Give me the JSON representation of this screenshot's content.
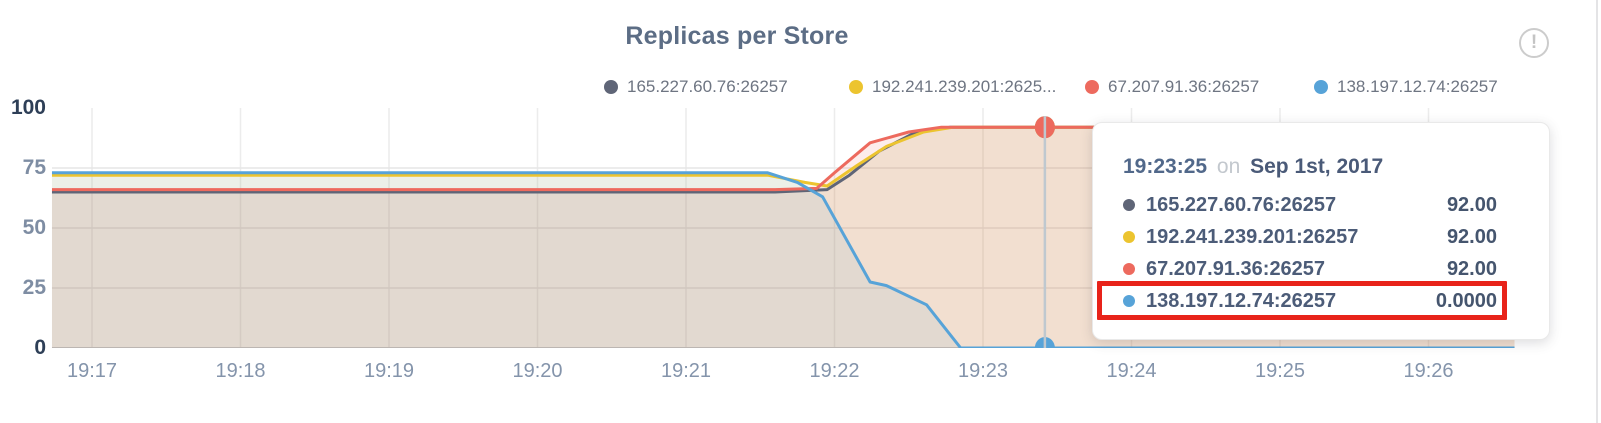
{
  "panel": {
    "title": "Replicas per Store",
    "info_glyph": "!"
  },
  "legend": {
    "items": [
      {
        "label": "165.227.60.76:26257",
        "color": "#5f6577"
      },
      {
        "label": "192.241.239.201:2625...",
        "color": "#ecc42f"
      },
      {
        "label": "67.207.91.36:26257",
        "color": "#ed6a5e"
      },
      {
        "label": "138.197.12.74:26257",
        "color": "#57a3d8"
      }
    ]
  },
  "tooltip": {
    "time": "19:23:25",
    "on_word": "on",
    "date": "Sep 1st, 2017",
    "rows": [
      {
        "name": "165.227.60.76:26257",
        "value": "92.00",
        "color": "#5f6577",
        "highlighted": false
      },
      {
        "name": "192.241.239.201:26257",
        "value": "92.00",
        "color": "#ecc42f",
        "highlighted": false
      },
      {
        "name": "67.207.91.36:26257",
        "value": "92.00",
        "color": "#ed6a5e",
        "highlighted": false
      },
      {
        "name": "138.197.12.74:26257",
        "value": "0.0000",
        "color": "#57a3d8",
        "highlighted": true
      }
    ]
  },
  "colors": {
    "annotation_red": "#e8231a",
    "title": "#5c6d85",
    "axis_strong": "#2e3f57",
    "axis_muted": "#7e8da3",
    "x_label": "#8494ab",
    "grid_vertical": "#ececec",
    "grid_horizontal": "#e6e6e6",
    "baseline": "#c6cbd1",
    "hover_line": "#bfc8cf",
    "legend_text": "#6e7582",
    "tooltip_time": "#51688a",
    "tooltip_on": "#c3c8ce",
    "tooltip_text": "#4c5c78",
    "info_icon": "#c9c9c9"
  },
  "chart_data": {
    "type": "area",
    "title": "Replicas per Store",
    "xlabel": "",
    "ylabel": "",
    "ylim": [
      0,
      100
    ],
    "grid": true,
    "legend_position": "top",
    "y_ticks": [
      {
        "v": 0,
        "label": "0",
        "strong": true
      },
      {
        "v": 25,
        "label": "25",
        "strong": false
      },
      {
        "v": 50,
        "label": "50",
        "strong": false
      },
      {
        "v": 75,
        "label": "75",
        "strong": false
      },
      {
        "v": 100,
        "label": "100",
        "strong": true
      }
    ],
    "x_ticks": [
      {
        "m": 17,
        "label": "19:17"
      },
      {
        "m": 18,
        "label": "19:18"
      },
      {
        "m": 19,
        "label": "19:19"
      },
      {
        "m": 20,
        "label": "19:20"
      },
      {
        "m": 21,
        "label": "19:21"
      },
      {
        "m": 22,
        "label": "19:22"
      },
      {
        "m": 23,
        "label": "19:23"
      },
      {
        "m": 24,
        "label": "19:24"
      },
      {
        "m": 25,
        "label": "19:25"
      },
      {
        "m": 26,
        "label": "19:26"
      }
    ],
    "x_range_minutes": [
      16.73,
      26.58
    ],
    "hover": {
      "time_label": "19:23:25",
      "date_label": "Sep 1st, 2017",
      "minute": 23.4167
    },
    "series": [
      {
        "name": "165.227.60.76:26257",
        "color": "#5f6577",
        "fill_opacity": 0.07,
        "hover_value": 92,
        "points": [
          [
            16.73,
            65
          ],
          [
            21.6,
            65
          ],
          [
            21.95,
            66
          ],
          [
            22.1,
            72
          ],
          [
            22.3,
            82
          ],
          [
            22.55,
            90
          ],
          [
            22.78,
            92
          ],
          [
            26.58,
            92
          ]
        ]
      },
      {
        "name": "192.241.239.201:26257",
        "color": "#ecc42f",
        "fill_opacity": 0.1,
        "hover_value": 92,
        "points": [
          [
            16.73,
            72
          ],
          [
            21.55,
            72
          ],
          [
            21.8,
            69
          ],
          [
            21.95,
            67.5
          ],
          [
            22.15,
            76
          ],
          [
            22.35,
            84
          ],
          [
            22.6,
            90
          ],
          [
            22.8,
            92
          ],
          [
            26.58,
            92
          ]
        ]
      },
      {
        "name": "67.207.91.36:26257",
        "color": "#ed6a5e",
        "fill_opacity": 0.12,
        "hover_value": 92,
        "points": [
          [
            16.73,
            66
          ],
          [
            21.6,
            66
          ],
          [
            21.88,
            66.5
          ],
          [
            22.0,
            73
          ],
          [
            22.24,
            85.5
          ],
          [
            22.5,
            90
          ],
          [
            22.72,
            92
          ],
          [
            26.58,
            92
          ]
        ]
      },
      {
        "name": "138.197.12.74:26257",
        "color": "#57a3d8",
        "fill_opacity": 0.1,
        "hover_value": 0,
        "points": [
          [
            16.73,
            73
          ],
          [
            21.55,
            73
          ],
          [
            21.75,
            69
          ],
          [
            21.92,
            63
          ],
          [
            22.24,
            27.5
          ],
          [
            22.35,
            26
          ],
          [
            22.62,
            18
          ],
          [
            22.85,
            0
          ],
          [
            26.58,
            0
          ]
        ]
      }
    ]
  }
}
